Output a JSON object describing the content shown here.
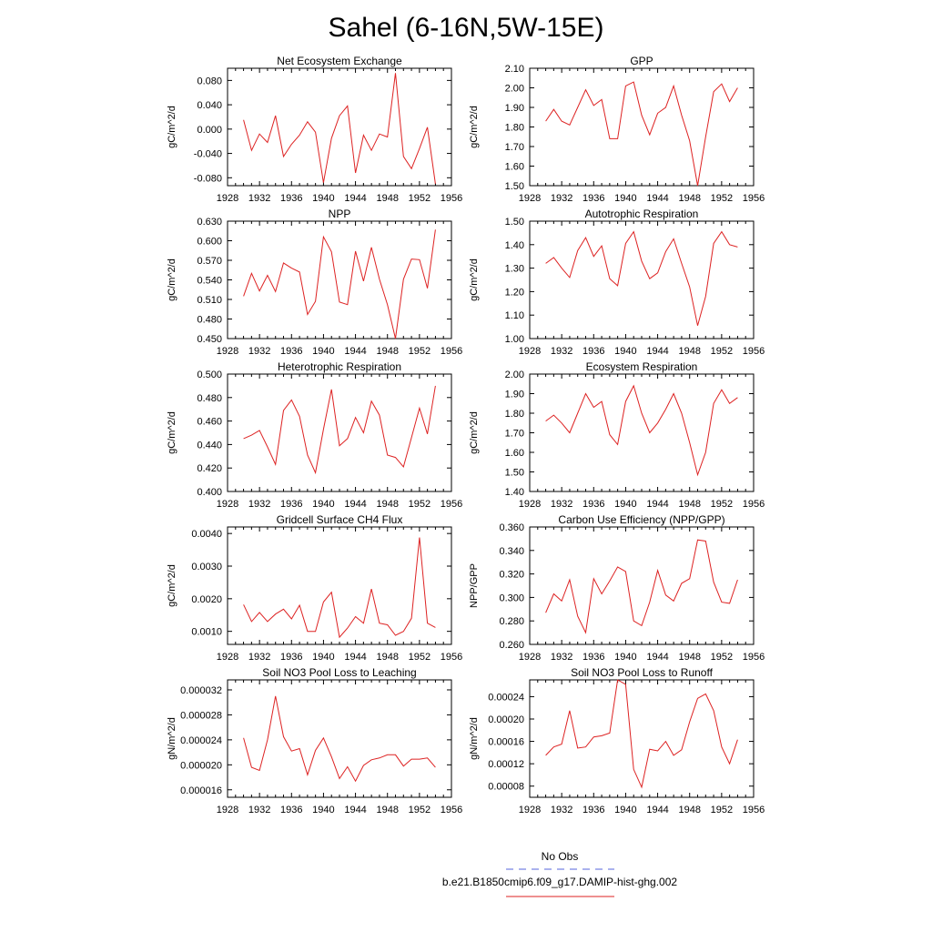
{
  "figure": {
    "title": "Sahel (6-16N,5W-15E)",
    "legend": {
      "obs_label": "No Obs",
      "obs_color": "#5566dd",
      "model_label": "b.e21.B1850cmip6.f09_g17.DAMIP-hist-ghg.002",
      "model_color": "#dd2222"
    }
  },
  "chart_data": [
    {
      "type": "line",
      "title": "Net Ecosystem Exchange",
      "ylabel": "gC/m^2/d",
      "xlim": [
        1928,
        1956
      ],
      "ylim": [
        -0.093,
        0.1
      ],
      "xticks": [
        1928,
        1932,
        1936,
        1940,
        1944,
        1948,
        1952,
        1956
      ],
      "yticks": [
        "-0.080",
        "-0.040",
        "0.000",
        "0.040",
        "0.080"
      ],
      "series": [
        {
          "color": "#dd2222",
          "x": [
            1930,
            1931,
            1932,
            1933,
            1934,
            1935,
            1936,
            1937,
            1938,
            1939,
            1940,
            1941,
            1942,
            1943,
            1944,
            1945,
            1946,
            1947,
            1948,
            1949,
            1950,
            1951,
            1952,
            1953,
            1954
          ],
          "y": [
            0.015,
            -0.035,
            -0.008,
            -0.022,
            0.022,
            -0.045,
            -0.025,
            -0.01,
            0.012,
            -0.005,
            -0.088,
            -0.015,
            0.022,
            0.038,
            -0.072,
            -0.01,
            -0.035,
            -0.008,
            -0.013,
            0.092,
            -0.045,
            -0.065,
            -0.032,
            0.003,
            -0.09
          ]
        }
      ]
    },
    {
      "type": "line",
      "title": "GPP",
      "ylabel": "gC/m^2/d",
      "xlim": [
        1928,
        1956
      ],
      "ylim": [
        1.5,
        2.1
      ],
      "xticks": [
        1928,
        1932,
        1936,
        1940,
        1944,
        1948,
        1952,
        1956
      ],
      "yticks": [
        "1.50",
        "1.60",
        "1.70",
        "1.80",
        "1.90",
        "2.00",
        "2.10"
      ],
      "series": [
        {
          "color": "#dd2222",
          "x": [
            1930,
            1931,
            1932,
            1933,
            1934,
            1935,
            1936,
            1937,
            1938,
            1939,
            1940,
            1941,
            1942,
            1943,
            1944,
            1945,
            1946,
            1947,
            1948,
            1949,
            1950,
            1951,
            1952,
            1953,
            1954
          ],
          "y": [
            1.83,
            1.89,
            1.83,
            1.81,
            1.9,
            1.99,
            1.91,
            1.94,
            1.74,
            1.74,
            2.01,
            2.03,
            1.86,
            1.76,
            1.87,
            1.9,
            2.01,
            1.86,
            1.73,
            1.5,
            1.75,
            1.98,
            2.02,
            1.93,
            2.0
          ]
        }
      ]
    },
    {
      "type": "line",
      "title": "NPP",
      "ylabel": "gC/m^2/d",
      "xlim": [
        1928,
        1956
      ],
      "ylim": [
        0.45,
        0.63
      ],
      "xticks": [
        1928,
        1932,
        1936,
        1940,
        1944,
        1948,
        1952,
        1956
      ],
      "yticks": [
        "0.450",
        "0.480",
        "0.510",
        "0.540",
        "0.570",
        "0.600",
        "0.630"
      ],
      "series": [
        {
          "color": "#dd2222",
          "x": [
            1930,
            1931,
            1932,
            1933,
            1934,
            1935,
            1936,
            1937,
            1938,
            1939,
            1940,
            1941,
            1942,
            1943,
            1944,
            1945,
            1946,
            1947,
            1948,
            1949,
            1950,
            1951,
            1952,
            1953,
            1954
          ],
          "y": [
            0.515,
            0.55,
            0.523,
            0.547,
            0.522,
            0.566,
            0.558,
            0.552,
            0.487,
            0.507,
            0.606,
            0.583,
            0.506,
            0.502,
            0.584,
            0.538,
            0.59,
            0.541,
            0.502,
            0.45,
            0.541,
            0.572,
            0.571,
            0.527,
            0.617
          ]
        }
      ]
    },
    {
      "type": "line",
      "title": "Autotrophic Respiration",
      "ylabel": "gC/m^2/d",
      "xlim": [
        1928,
        1956
      ],
      "ylim": [
        1.0,
        1.5
      ],
      "xticks": [
        1928,
        1932,
        1936,
        1940,
        1944,
        1948,
        1952,
        1956
      ],
      "yticks": [
        "1.00",
        "1.10",
        "1.20",
        "1.30",
        "1.40",
        "1.50"
      ],
      "series": [
        {
          "color": "#dd2222",
          "x": [
            1930,
            1931,
            1932,
            1933,
            1934,
            1935,
            1936,
            1937,
            1938,
            1939,
            1940,
            1941,
            1942,
            1943,
            1944,
            1945,
            1946,
            1947,
            1948,
            1949,
            1950,
            1951,
            1952,
            1953,
            1954
          ],
          "y": [
            1.32,
            1.345,
            1.3,
            1.26,
            1.375,
            1.43,
            1.35,
            1.395,
            1.255,
            1.225,
            1.405,
            1.455,
            1.33,
            1.255,
            1.28,
            1.37,
            1.425,
            1.32,
            1.22,
            1.055,
            1.18,
            1.405,
            1.455,
            1.4,
            1.39
          ]
        }
      ]
    },
    {
      "type": "line",
      "title": "Heterotrophic Respiration",
      "ylabel": "gC/m^2/d",
      "xlim": [
        1928,
        1956
      ],
      "ylim": [
        0.4,
        0.5
      ],
      "xticks": [
        1928,
        1932,
        1936,
        1940,
        1944,
        1948,
        1952,
        1956
      ],
      "yticks": [
        "0.400",
        "0.420",
        "0.440",
        "0.460",
        "0.480",
        "0.500"
      ],
      "series": [
        {
          "color": "#dd2222",
          "x": [
            1930,
            1931,
            1932,
            1933,
            1934,
            1935,
            1936,
            1937,
            1938,
            1939,
            1940,
            1941,
            1942,
            1943,
            1944,
            1945,
            1946,
            1947,
            1948,
            1949,
            1950,
            1951,
            1952,
            1953,
            1954
          ],
          "y": [
            0.445,
            0.448,
            0.452,
            0.438,
            0.423,
            0.469,
            0.478,
            0.464,
            0.431,
            0.416,
            0.453,
            0.487,
            0.439,
            0.445,
            0.463,
            0.45,
            0.477,
            0.465,
            0.431,
            0.429,
            0.421,
            0.446,
            0.471,
            0.449,
            0.49
          ]
        }
      ]
    },
    {
      "type": "line",
      "title": "Ecosystem Respiration",
      "ylabel": "gC/m^2/d",
      "xlim": [
        1928,
        1956
      ],
      "ylim": [
        1.4,
        2.0
      ],
      "xticks": [
        1928,
        1932,
        1936,
        1940,
        1944,
        1948,
        1952,
        1956
      ],
      "yticks": [
        "1.40",
        "1.50",
        "1.60",
        "1.70",
        "1.80",
        "1.90",
        "2.00"
      ],
      "series": [
        {
          "color": "#dd2222",
          "x": [
            1930,
            1931,
            1932,
            1933,
            1934,
            1935,
            1936,
            1937,
            1938,
            1939,
            1940,
            1941,
            1942,
            1943,
            1944,
            1945,
            1946,
            1947,
            1948,
            1949,
            1950,
            1951,
            1952,
            1953,
            1954
          ],
          "y": [
            1.76,
            1.79,
            1.75,
            1.7,
            1.8,
            1.9,
            1.83,
            1.86,
            1.69,
            1.64,
            1.86,
            1.94,
            1.8,
            1.7,
            1.75,
            1.82,
            1.9,
            1.8,
            1.65,
            1.485,
            1.6,
            1.85,
            1.92,
            1.85,
            1.88
          ]
        }
      ]
    },
    {
      "type": "line",
      "title": "Gridcell Surface CH4 Flux",
      "ylabel": "gC/m^2/d",
      "xlim": [
        1928,
        1956
      ],
      "ylim": [
        0.0006,
        0.0042
      ],
      "xticks": [
        1928,
        1932,
        1936,
        1940,
        1944,
        1948,
        1952,
        1956
      ],
      "yticks": [
        "0.0010",
        "0.0020",
        "0.0030",
        "0.0040"
      ],
      "series": [
        {
          "color": "#dd2222",
          "x": [
            1930,
            1931,
            1932,
            1933,
            1934,
            1935,
            1936,
            1937,
            1938,
            1939,
            1940,
            1941,
            1942,
            1943,
            1944,
            1945,
            1946,
            1947,
            1948,
            1949,
            1950,
            1951,
            1952,
            1953,
            1954
          ],
          "y": [
            0.00182,
            0.0013,
            0.00158,
            0.0013,
            0.00153,
            0.00168,
            0.00138,
            0.0018,
            0.001,
            0.001,
            0.0019,
            0.0022,
            0.00082,
            0.0011,
            0.00145,
            0.00125,
            0.0023,
            0.00125,
            0.0012,
            0.00088,
            0.001,
            0.0014,
            0.00388,
            0.00125,
            0.00112
          ]
        }
      ]
    },
    {
      "type": "line",
      "title": "Carbon Use Efficiency (NPP/GPP)",
      "ylabel": "NPP/GPP",
      "xlim": [
        1928,
        1956
      ],
      "ylim": [
        0.26,
        0.36
      ],
      "xticks": [
        1928,
        1932,
        1936,
        1940,
        1944,
        1948,
        1952,
        1956
      ],
      "yticks": [
        "0.260",
        "0.280",
        "0.300",
        "0.320",
        "0.340",
        "0.360"
      ],
      "series": [
        {
          "color": "#dd2222",
          "x": [
            1930,
            1931,
            1932,
            1933,
            1934,
            1935,
            1936,
            1937,
            1938,
            1939,
            1940,
            1941,
            1942,
            1943,
            1944,
            1945,
            1946,
            1947,
            1948,
            1949,
            1950,
            1951,
            1952,
            1953,
            1954
          ],
          "y": [
            0.287,
            0.303,
            0.297,
            0.315,
            0.284,
            0.27,
            0.316,
            0.303,
            0.314,
            0.326,
            0.322,
            0.28,
            0.276,
            0.296,
            0.323,
            0.302,
            0.297,
            0.312,
            0.316,
            0.349,
            0.348,
            0.313,
            0.296,
            0.295,
            0.315
          ]
        }
      ]
    },
    {
      "type": "line",
      "title": "Soil NO3 Pool Loss to Leaching",
      "ylabel": "gN/m^2/d",
      "xlim": [
        1928,
        1956
      ],
      "ylim": [
        1.48e-05,
        3.36e-05
      ],
      "xticks": [
        1928,
        1932,
        1936,
        1940,
        1944,
        1948,
        1952,
        1956
      ],
      "yticks": [
        "0.000016",
        "0.000020",
        "0.000024",
        "0.000028",
        "0.000032"
      ],
      "series": [
        {
          "color": "#dd2222",
          "x": [
            1930,
            1931,
            1932,
            1933,
            1934,
            1935,
            1936,
            1937,
            1938,
            1939,
            1940,
            1941,
            1942,
            1943,
            1944,
            1945,
            1946,
            1947,
            1948,
            1949,
            1950,
            1951,
            1952,
            1953,
            1954
          ],
          "y": [
            2.43e-05,
            1.96e-05,
            1.91e-05,
            2.4e-05,
            3.1e-05,
            2.45e-05,
            2.22e-05,
            2.26e-05,
            1.84e-05,
            2.23e-05,
            2.43e-05,
            2.13e-05,
            1.78e-05,
            1.97e-05,
            1.74e-05,
            1.99e-05,
            2.08e-05,
            2.11e-05,
            2.16e-05,
            2.16e-05,
            1.98e-05,
            2.09e-05,
            2.09e-05,
            2.11e-05,
            1.96e-05
          ]
        }
      ]
    },
    {
      "type": "line",
      "title": "Soil NO3 Pool Loss to Runoff",
      "ylabel": "gN/m^2/d",
      "xlim": [
        1928,
        1956
      ],
      "ylim": [
        6e-05,
        0.00027
      ],
      "xticks": [
        1928,
        1932,
        1936,
        1940,
        1944,
        1948,
        1952,
        1956
      ],
      "yticks": [
        "0.00008",
        "0.00012",
        "0.00016",
        "0.00020",
        "0.00024"
      ],
      "series": [
        {
          "color": "#dd2222",
          "x": [
            1930,
            1931,
            1932,
            1933,
            1934,
            1935,
            1936,
            1937,
            1938,
            1939,
            1940,
            1941,
            1942,
            1943,
            1944,
            1945,
            1946,
            1947,
            1948,
            1949,
            1950,
            1951,
            1952,
            1953,
            1954
          ],
          "y": [
            0.000135,
            0.00015,
            0.000155,
            0.000215,
            0.000148,
            0.00015,
            0.000168,
            0.00017,
            0.000175,
            0.00027,
            0.000262,
            0.00011,
            7.8e-05,
            0.000146,
            0.000143,
            0.00016,
            0.000135,
            0.000145,
            0.000195,
            0.000237,
            0.000245,
            0.000215,
            0.00015,
            0.00012,
            0.000163
          ]
        }
      ]
    }
  ]
}
